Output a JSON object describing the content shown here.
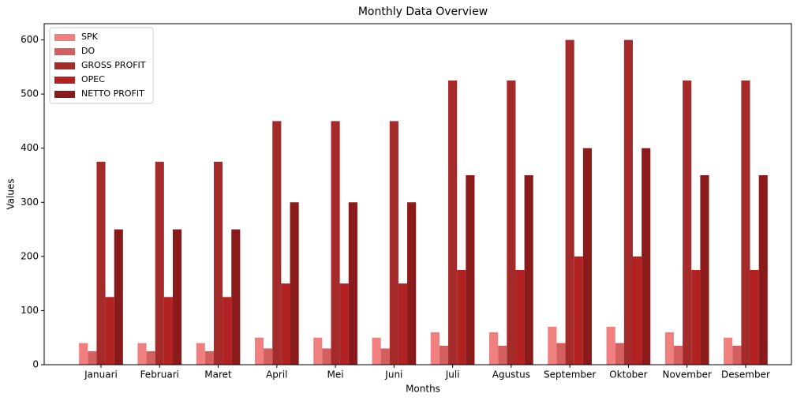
{
  "chart_data": {
    "type": "bar",
    "title": "Monthly Data Overview",
    "x_label": "Months",
    "y_label": "Values",
    "categories": [
      "Januari",
      "Februari",
      "Maret",
      "April",
      "Mei",
      "Juni",
      "Juli",
      "Agustus",
      "September",
      "Oktober",
      "November",
      "Desember"
    ],
    "series": [
      {
        "name": "SPK",
        "color": "#f08080",
        "values": [
          40,
          40,
          40,
          50,
          50,
          50,
          60,
          60,
          70,
          70,
          60,
          50
        ]
      },
      {
        "name": "DO",
        "color": "#d45f5f",
        "values": [
          25,
          25,
          25,
          30,
          30,
          30,
          35,
          35,
          40,
          40,
          35,
          35
        ]
      },
      {
        "name": "GROSS PROFIT",
        "color": "#a52a2a",
        "values": [
          375,
          375,
          375,
          450,
          450,
          450,
          525,
          525,
          600,
          600,
          525,
          525
        ]
      },
      {
        "name": "OPEC",
        "color": "#b22222",
        "values": [
          125,
          125,
          125,
          150,
          150,
          150,
          175,
          175,
          200,
          200,
          175,
          175
        ]
      },
      {
        "name": "NETTO PROFIT",
        "color": "#8b1a1a",
        "values": [
          250,
          250,
          250,
          300,
          300,
          300,
          350,
          350,
          400,
          400,
          350,
          350
        ]
      }
    ],
    "ylim": [
      0,
      630
    ],
    "yticks": [
      0,
      100,
      200,
      300,
      400,
      500,
      600
    ],
    "grid": false,
    "legend": "upper-left"
  }
}
